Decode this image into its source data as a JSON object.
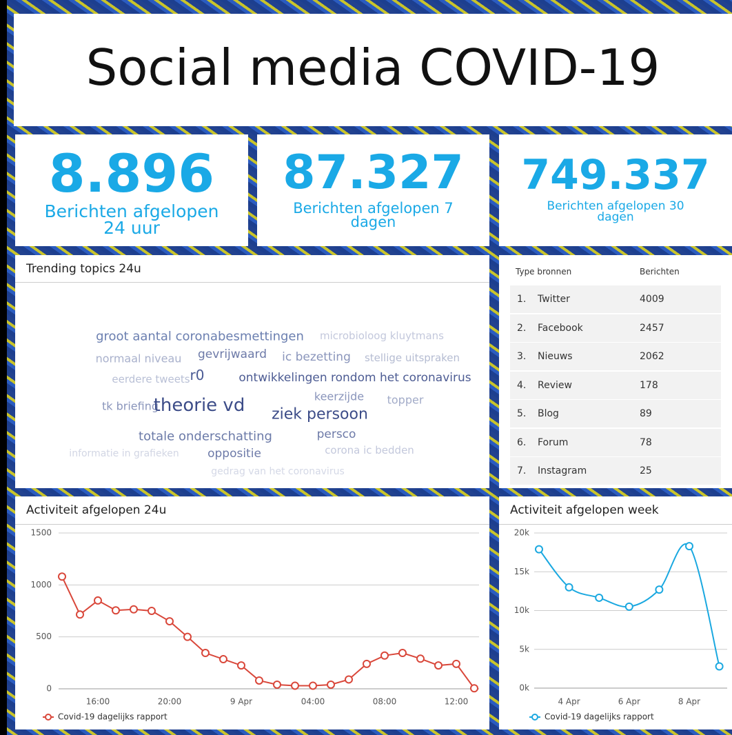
{
  "header": {
    "title": "Social media COVID-19"
  },
  "kpis": [
    {
      "value": "8.896",
      "label": "Berichten afgelopen 24 uur"
    },
    {
      "value": "87.327",
      "label": "Berichten afgelopen 7 dagen"
    },
    {
      "value": "749.337",
      "label": "Berichten afgelopen 30 dagen"
    }
  ],
  "trending": {
    "title": "Trending topics 24u",
    "words": [
      "groot aantal coronabesmettingen",
      "microbioloog kluytmans",
      "normaal niveau",
      "gevrijwaard",
      "ic bezetting",
      "stellige uitspraken",
      "eerdere tweets",
      "r0",
      "ontwikkelingen rondom het coronavirus",
      "keerzijde",
      "topper",
      "tk briefing",
      "theorie vd",
      "ziek persoon",
      "totale onderschatting",
      "persco",
      "informatie in grafieken",
      "oppositie",
      "corona ic bedden",
      "gedrag van het coronavirus"
    ]
  },
  "sources_table": {
    "columns": [
      "Type bronnen",
      "Berichten"
    ],
    "rows": [
      [
        "1.",
        "Twitter",
        4009
      ],
      [
        "2.",
        "Facebook",
        2457
      ],
      [
        "3.",
        "Nieuws",
        2062
      ],
      [
        "4.",
        "Review",
        178
      ],
      [
        "5.",
        "Blog",
        89
      ],
      [
        "6.",
        "Forum",
        78
      ],
      [
        "7.",
        "Instagram",
        25
      ]
    ]
  },
  "chart_data": [
    {
      "type": "line",
      "title": "Activiteit afgelopen 24u",
      "categories": [
        null,
        null,
        "16:00",
        null,
        null,
        null,
        "20:00",
        null,
        null,
        null,
        "9 Apr",
        null,
        null,
        null,
        "04:00",
        null,
        null,
        null,
        "08:00",
        null,
        null,
        null,
        "12:00",
        null
      ],
      "series": [
        {
          "name": "Covid-19 dagelijks rapport",
          "color": "#d9473a",
          "values": [
            1080,
            715,
            850,
            755,
            765,
            750,
            650,
            500,
            345,
            285,
            225,
            80,
            40,
            30,
            30,
            40,
            90,
            240,
            320,
            345,
            290,
            225,
            240,
            5
          ]
        }
      ],
      "ylim": [
        0,
        1500
      ],
      "yticks": [
        0,
        500,
        1000,
        1500
      ],
      "grid": true,
      "smooth": false
    },
    {
      "type": "line",
      "title": "Activiteit afgelopen week",
      "categories": [
        null,
        "4 Apr",
        null,
        "6 Apr",
        null,
        "8 Apr",
        null
      ],
      "series": [
        {
          "name": "Covid-19 dagelijks rapport",
          "color": "#1aa8e0",
          "values": [
            17900,
            13000,
            11650,
            10500,
            12700,
            18300,
            2800
          ]
        }
      ],
      "ylim": [
        0,
        20000
      ],
      "yticks": [
        {
          "value": 0,
          "label": "0k"
        },
        {
          "value": 5000,
          "label": "5k"
        },
        {
          "value": 10000,
          "label": "10k"
        },
        {
          "value": 15000,
          "label": "15k"
        },
        {
          "value": 20000,
          "label": "20k"
        }
      ],
      "grid": true,
      "smooth": true
    }
  ]
}
